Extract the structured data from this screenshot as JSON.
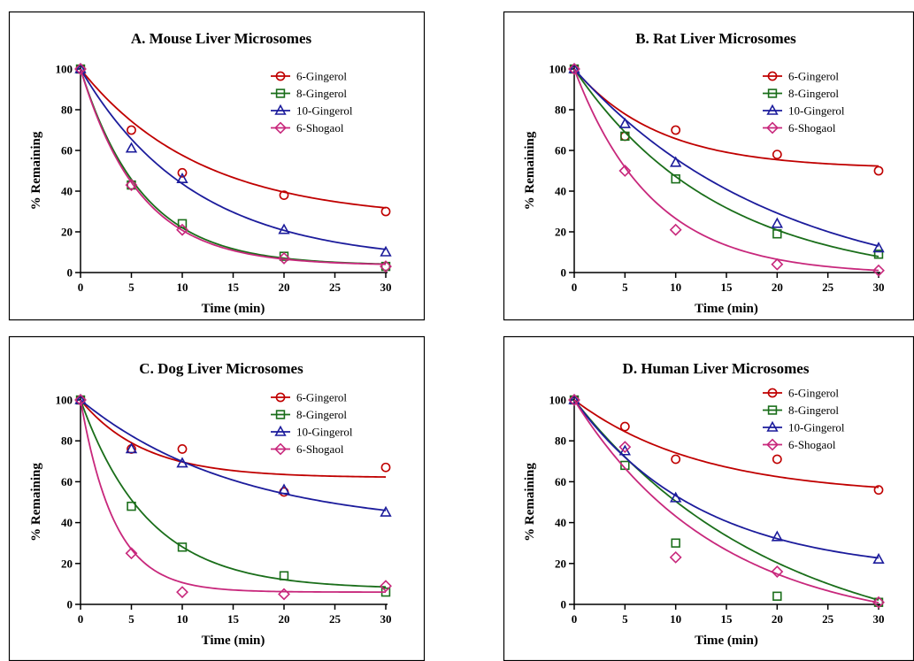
{
  "colors": {
    "6-Gingerol": "#c00000",
    "8-Gingerol": "#1a6e1a",
    "10-Gingerol": "#1c1c9c",
    "6-Shogaol": "#c8287c"
  },
  "chart_data": [
    {
      "type": "scatter",
      "title": "A. Mouse Liver Microsomes",
      "xlabel": "Time (min)",
      "ylabel": "% Remaining",
      "xlim": [
        0,
        30
      ],
      "ylim": [
        0,
        100
      ],
      "xticks": [
        0,
        5,
        10,
        15,
        20,
        25,
        30
      ],
      "yticks": [
        0,
        20,
        40,
        60,
        80,
        100
      ],
      "legend_position": "top-right",
      "x": [
        0,
        5,
        10,
        20,
        30
      ],
      "series": [
        {
          "name": "6-Gingerol",
          "marker": "circle",
          "values": [
            100,
            70,
            49,
            38,
            30
          ],
          "fit": {
            "plateau": 26,
            "k": 0.085
          }
        },
        {
          "name": "8-Gingerol",
          "marker": "square",
          "values": [
            100,
            43,
            24,
            8,
            3
          ],
          "fit": {
            "plateau": 3.5,
            "k": 0.165
          }
        },
        {
          "name": "10-Gingerol",
          "marker": "triangle",
          "values": [
            100,
            61,
            46,
            21,
            10
          ],
          "fit": {
            "plateau": 5,
            "k": 0.09
          }
        },
        {
          "name": "6-Shogaol",
          "marker": "diamond",
          "values": [
            100,
            43,
            21,
            7,
            3
          ],
          "fit": {
            "plateau": 3.5,
            "k": 0.172
          }
        }
      ]
    },
    {
      "type": "scatter",
      "title": "B. Rat Liver Microsomes",
      "xlabel": "Time (min)",
      "ylabel": "% Remaining",
      "xlim": [
        0,
        30
      ],
      "ylim": [
        0,
        100
      ],
      "xticks": [
        0,
        5,
        10,
        15,
        20,
        25,
        30
      ],
      "yticks": [
        0,
        20,
        40,
        60,
        80,
        100
      ],
      "legend_position": "top-right",
      "x": [
        0,
        5,
        10,
        20,
        30
      ],
      "series": [
        {
          "name": "6-Gingerol",
          "marker": "circle",
          "values": [
            100,
            67,
            70,
            58,
            50
          ],
          "fit": {
            "plateau": 51,
            "k": 0.12
          }
        },
        {
          "name": "8-Gingerol",
          "marker": "square",
          "values": [
            100,
            67,
            46,
            19,
            9
          ],
          "fit": {
            "plateau": -5,
            "k": 0.07
          }
        },
        {
          "name": "10-Gingerol",
          "marker": "triangle",
          "values": [
            100,
            73,
            54,
            24,
            12
          ],
          "fit": {
            "plateau": -12,
            "k": 0.05
          }
        },
        {
          "name": "6-Shogaol",
          "marker": "diamond",
          "values": [
            100,
            50,
            21,
            4,
            1
          ],
          "fit": {
            "plateau": -1,
            "k": 0.13
          }
        }
      ]
    },
    {
      "type": "scatter",
      "title": "C. Dog Liver Microsomes",
      "xlabel": "Time (min)",
      "ylabel": "% Remaining",
      "xlim": [
        0,
        30
      ],
      "ylim": [
        0,
        100
      ],
      "xticks": [
        0,
        5,
        10,
        15,
        20,
        25,
        30
      ],
      "yticks": [
        0,
        20,
        40,
        60,
        80,
        100
      ],
      "legend_position": "top-right",
      "x": [
        0,
        5,
        10,
        20,
        30
      ],
      "series": [
        {
          "name": "6-Gingerol",
          "marker": "circle",
          "values": [
            100,
            76,
            76,
            55,
            67
          ],
          "fit": {
            "plateau": 62,
            "k": 0.16
          }
        },
        {
          "name": "8-Gingerol",
          "marker": "square",
          "values": [
            100,
            48,
            28,
            14,
            6
          ],
          "fit": {
            "plateau": 7.5,
            "k": 0.15
          }
        },
        {
          "name": "10-Gingerol",
          "marker": "triangle",
          "values": [
            100,
            76,
            69,
            56,
            45
          ],
          "fit": {
            "plateau": 37,
            "k": 0.065
          }
        },
        {
          "name": "6-Shogaol",
          "marker": "diamond",
          "values": [
            100,
            25,
            6,
            5,
            9
          ],
          "fit": {
            "plateau": 6,
            "k": 0.3
          }
        }
      ]
    },
    {
      "type": "scatter",
      "title": "D. Human Liver Microsomes",
      "xlabel": "Time (min)",
      "ylabel": "% Remaining",
      "xlim": [
        0,
        30
      ],
      "ylim": [
        0,
        100
      ],
      "xticks": [
        0,
        5,
        10,
        15,
        20,
        25,
        30
      ],
      "yticks": [
        0,
        20,
        40,
        60,
        80,
        100
      ],
      "legend_position": "top-right",
      "x": [
        0,
        5,
        10,
        20,
        30
      ],
      "series": [
        {
          "name": "6-Gingerol",
          "marker": "circle",
          "values": [
            100,
            87,
            71,
            71,
            56
          ],
          "fit": {
            "plateau": 53,
            "k": 0.08
          }
        },
        {
          "name": "8-Gingerol",
          "marker": "square",
          "values": [
            100,
            68,
            30,
            4,
            1
          ],
          "fit": {
            "plateau": -26,
            "k": 0.05
          }
        },
        {
          "name": "10-Gingerol",
          "marker": "triangle",
          "values": [
            100,
            75,
            52,
            33,
            22
          ],
          "fit": {
            "plateau": 15,
            "k": 0.08
          }
        },
        {
          "name": "6-Shogaol",
          "marker": "diamond",
          "values": [
            100,
            77,
            23,
            16,
            1
          ],
          "fit": {
            "plateau": -13,
            "k": 0.07
          }
        }
      ]
    }
  ]
}
